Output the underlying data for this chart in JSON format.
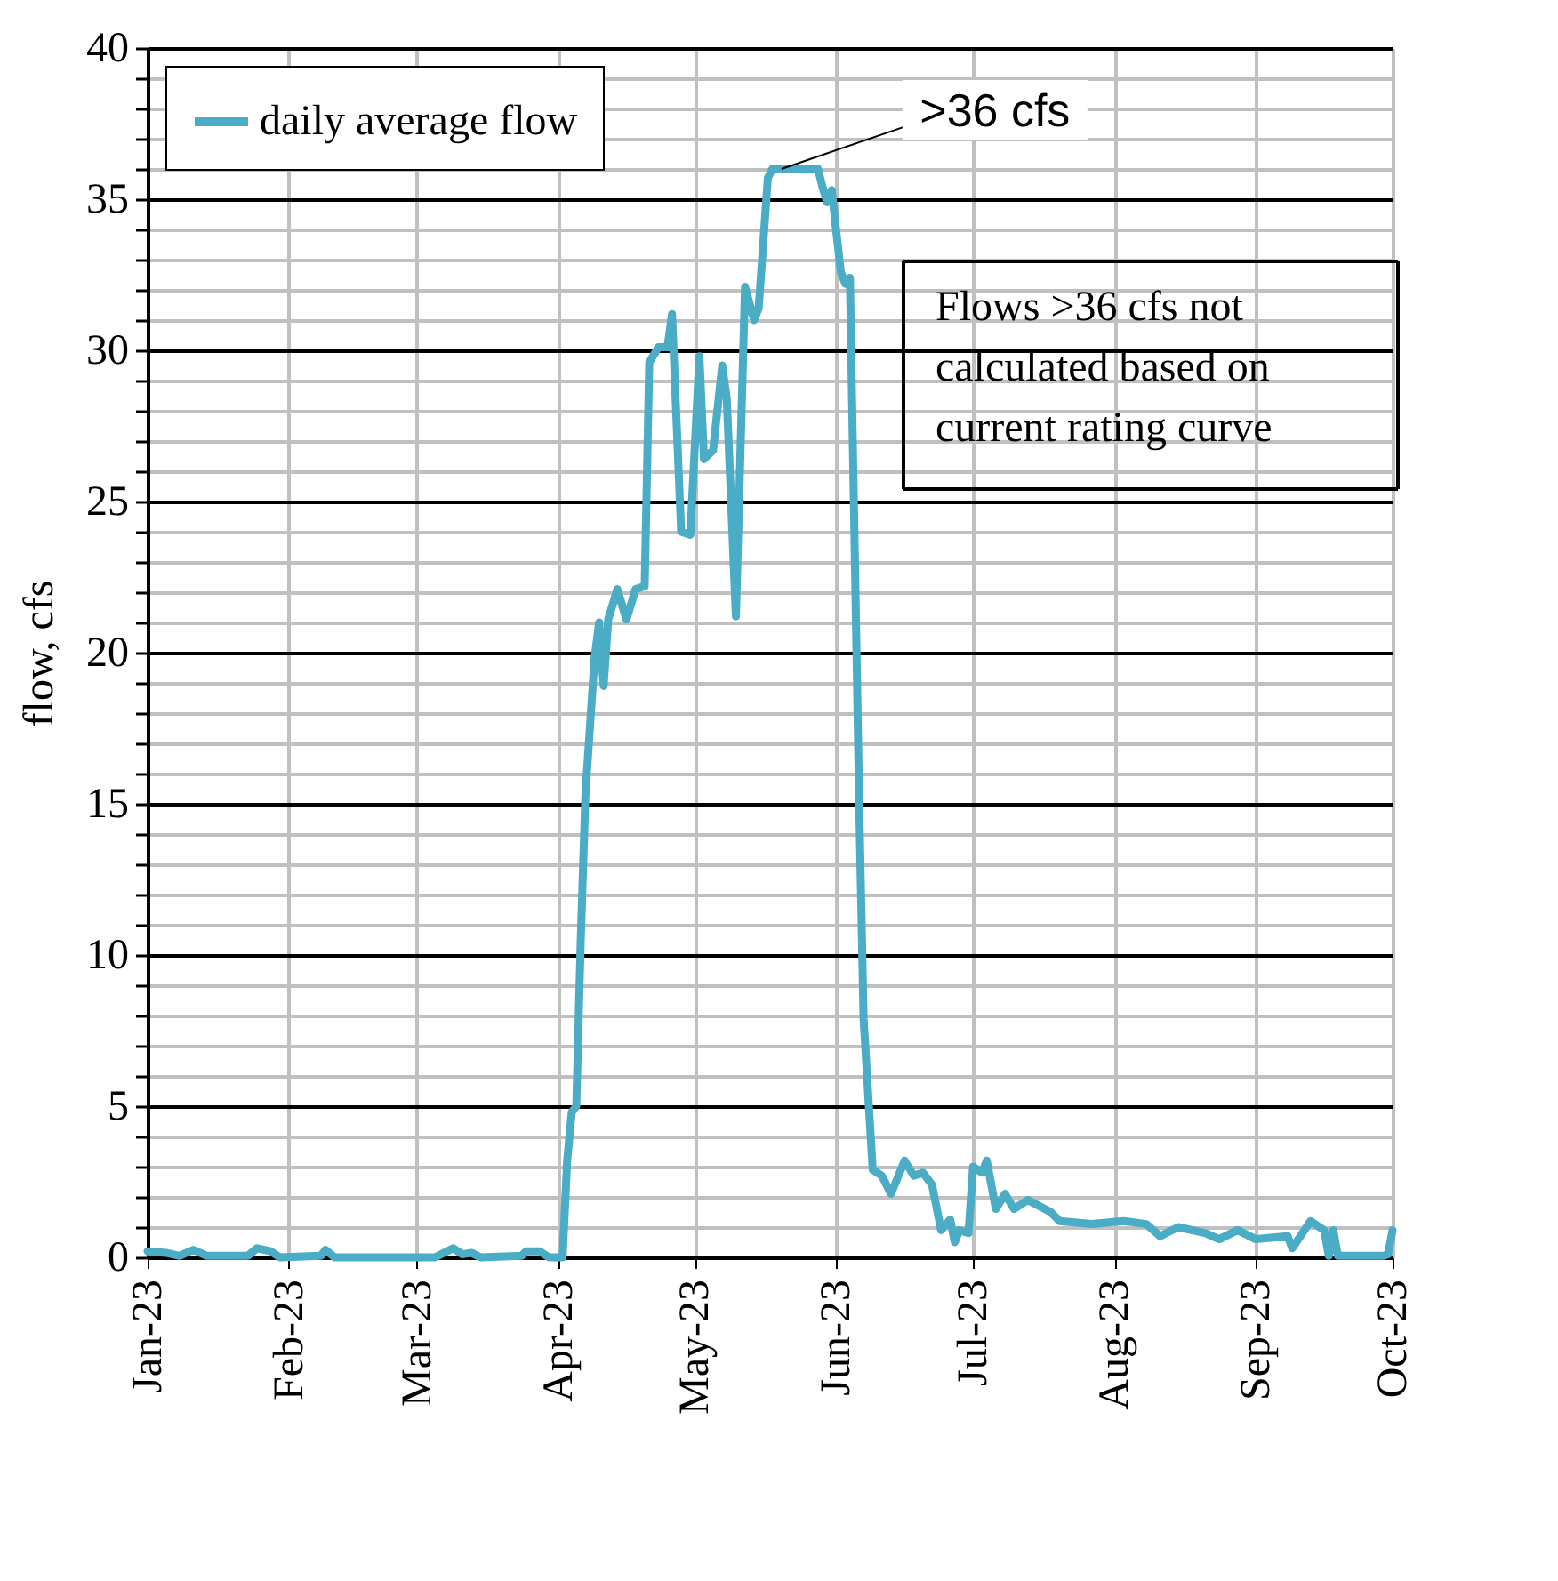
{
  "chart_data": {
    "type": "line",
    "ylabel": "flow, cfs",
    "x": [
      "2023-01-01",
      "2023-01-05",
      "2023-01-08",
      "2023-01-11",
      "2023-01-14",
      "2023-01-23",
      "2023-01-25",
      "2023-01-28",
      "2023-01-30",
      "2023-02-08",
      "2023-02-09",
      "2023-02-11",
      "2023-03-05",
      "2023-03-09",
      "2023-03-11",
      "2023-03-13",
      "2023-03-15",
      "2023-03-24",
      "2023-03-25",
      "2023-03-28",
      "2023-03-30",
      "2023-04-02",
      "2023-04-03",
      "2023-04-04",
      "2023-04-05",
      "2023-04-06",
      "2023-04-07",
      "2023-04-09",
      "2023-04-10",
      "2023-04-11",
      "2023-04-12",
      "2023-04-14",
      "2023-04-16",
      "2023-04-18",
      "2023-04-20",
      "2023-04-21",
      "2023-04-23",
      "2023-04-25",
      "2023-04-26",
      "2023-04-28",
      "2023-04-30",
      "2023-05-02",
      "2023-05-03",
      "2023-05-05",
      "2023-05-07",
      "2023-05-08",
      "2023-05-10",
      "2023-05-12",
      "2023-05-14",
      "2023-05-15",
      "2023-05-17",
      "2023-05-18",
      "2023-05-28",
      "2023-05-29",
      "2023-05-30",
      "2023-05-31",
      "2023-06-02",
      "2023-06-03",
      "2023-06-04",
      "2023-06-06",
      "2023-06-07",
      "2023-06-09",
      "2023-06-11",
      "2023-06-13",
      "2023-06-16",
      "2023-06-18",
      "2023-06-20",
      "2023-06-22",
      "2023-06-24",
      "2023-06-26",
      "2023-06-27",
      "2023-06-28",
      "2023-06-30",
      "2023-07-01",
      "2023-07-03",
      "2023-07-04",
      "2023-07-06",
      "2023-07-08",
      "2023-07-10",
      "2023-07-13",
      "2023-07-18",
      "2023-07-20",
      "2023-07-27",
      "2023-08-03",
      "2023-08-08",
      "2023-08-11",
      "2023-08-15",
      "2023-08-21",
      "2023-08-24",
      "2023-08-28",
      "2023-09-01",
      "2023-09-08",
      "2023-09-09",
      "2023-09-13",
      "2023-09-16",
      "2023-09-17",
      "2023-09-18",
      "2023-09-19",
      "2023-09-29",
      "2023-09-30",
      "2023-10-01"
    ],
    "series": [
      {
        "name": "daily average flow",
        "color": "#4bacc6",
        "values": [
          0.2,
          0.15,
          0.05,
          0.25,
          0.05,
          0.05,
          0.3,
          0.2,
          0.0,
          0.05,
          0.25,
          0.0,
          0.0,
          0.3,
          0.1,
          0.15,
          0.0,
          0.05,
          0.2,
          0.2,
          0.0,
          0.0,
          3.2,
          4.8,
          5.0,
          10.6,
          15.3,
          19.8,
          21.0,
          18.9,
          21.1,
          22.1,
          21.1,
          22.1,
          22.2,
          29.6,
          30.1,
          30.1,
          31.2,
          24.0,
          23.9,
          29.8,
          26.4,
          26.7,
          29.5,
          28.4,
          21.2,
          32.1,
          31.0,
          31.4,
          35.7,
          36,
          36,
          35.4,
          34.9,
          35.3,
          32.6,
          32.2,
          32.4,
          15.3,
          7.9,
          2.9,
          2.7,
          2.1,
          3.2,
          2.7,
          2.8,
          2.4,
          0.9,
          1.25,
          0.5,
          0.9,
          0.8,
          3.0,
          2.8,
          3.2,
          1.6,
          2.1,
          1.6,
          1.9,
          1.5,
          1.2,
          1.1,
          1.2,
          1.1,
          0.7,
          1.0,
          0.8,
          0.6,
          0.9,
          0.6,
          0.7,
          0.3,
          1.2,
          0.9,
          0.05,
          0.9,
          0.05,
          0.05,
          0.1,
          0.9
        ]
      }
    ],
    "xlim": [
      "2023-01-01",
      "2023-10-01"
    ],
    "xticks": [
      {
        "value": "2023-01-01",
        "label": "Jan-23"
      },
      {
        "value": "2023-02-01",
        "label": "Feb-23"
      },
      {
        "value": "2023-03-01",
        "label": "Mar-23"
      },
      {
        "value": "2023-04-01",
        "label": "Apr-23"
      },
      {
        "value": "2023-05-01",
        "label": "May-23"
      },
      {
        "value": "2023-06-01",
        "label": "Jun-23"
      },
      {
        "value": "2023-07-01",
        "label": "Jul-23"
      },
      {
        "value": "2023-08-01",
        "label": "Aug-23"
      },
      {
        "value": "2023-09-01",
        "label": "Sep-23"
      },
      {
        "value": "2023-10-01",
        "label": "Oct-23"
      }
    ],
    "ylim": [
      0,
      40
    ],
    "yticks": [
      0,
      {
        "value": 1,
        "label": null
      },
      {
        "value": 2,
        "label": null
      },
      {
        "value": 3,
        "label": null
      },
      {
        "value": 4,
        "label": null
      },
      5,
      {
        "value": 6,
        "label": null
      },
      {
        "value": 7,
        "label": null
      },
      {
        "value": 8,
        "label": null
      },
      {
        "value": 9,
        "label": null
      },
      10,
      {
        "value": 11,
        "label": null
      },
      {
        "value": 12,
        "label": null
      },
      {
        "value": 13,
        "label": null
      },
      {
        "value": 14,
        "label": null
      },
      15,
      {
        "value": 16,
        "label": null
      },
      {
        "value": 17,
        "label": null
      },
      {
        "value": 18,
        "label": null
      },
      {
        "value": 19,
        "label": null
      },
      20,
      {
        "value": 21,
        "label": null
      },
      {
        "value": 22,
        "label": null
      },
      {
        "value": 23,
        "label": null
      },
      {
        "value": 24,
        "label": null
      },
      25,
      {
        "value": 26,
        "label": null
      },
      {
        "value": 27,
        "label": null
      },
      {
        "value": 28,
        "label": null
      },
      {
        "value": 29,
        "label": null
      },
      30,
      {
        "value": 31,
        "label": null
      },
      {
        "value": 32,
        "label": null
      },
      {
        "value": 33,
        "label": null
      },
      {
        "value": 34,
        "label": null
      },
      35,
      {
        "value": 36,
        "label": null
      },
      {
        "value": 37,
        "label": null
      },
      {
        "value": 38,
        "label": null
      },
      {
        "value": 39,
        "label": null
      },
      40
    ],
    "grid": true,
    "legend": "top left",
    "marker": "none",
    "line_style": "solid",
    "annotations": [
      {
        "text": ">36 cfs",
        "x": "2023-05-20",
        "y": 36
      },
      "Flows >36 cfs not\ncalculated based on\ncurrent rating curve"
    ]
  }
}
